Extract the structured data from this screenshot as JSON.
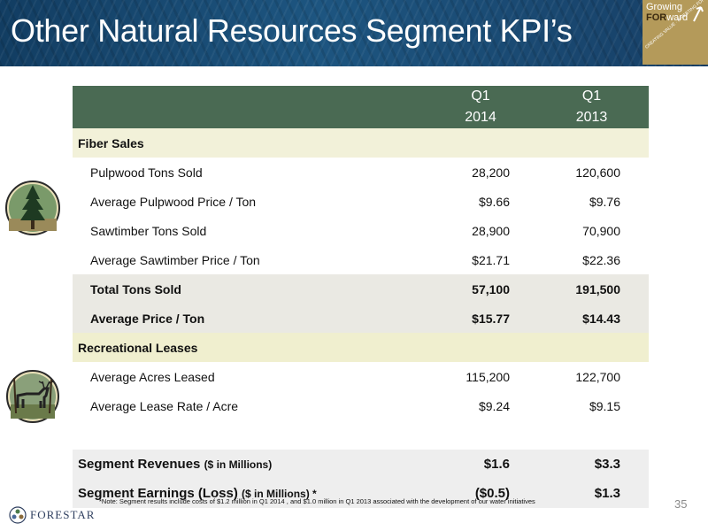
{
  "header": {
    "title": "Other Natural Resources Segment KPI’s",
    "badge_line1": "Growing",
    "badge_line2_bold": "FOR",
    "badge_line2_rest": "ward",
    "badge_slogan": "CREATING VALUE · INVESTING FOR THE FUTURE"
  },
  "table": {
    "col1_label": "Q1",
    "col1_year": "2014",
    "col2_label": "Q1",
    "col2_year": "2013",
    "fiber_section": "Fiber Sales",
    "fiber_rows": [
      {
        "label": "Pulpwood Tons Sold",
        "q1_2014": "28,200",
        "q1_2013": "120,600"
      },
      {
        "label": "Average Pulpwood Price / Ton",
        "q1_2014": "$9.66",
        "q1_2013": "$9.76"
      },
      {
        "label": "Sawtimber Tons Sold",
        "q1_2014": "28,900",
        "q1_2013": "70,900"
      },
      {
        "label": "Average Sawtimber Price / Ton",
        "q1_2014": "$21.71",
        "q1_2013": "$22.36"
      }
    ],
    "total_rows": [
      {
        "label": "Total Tons Sold",
        "q1_2014": "57,100",
        "q1_2013": "191,500"
      },
      {
        "label": "Average Price / Ton",
        "q1_2014": "$15.77",
        "q1_2013": "$14.43"
      }
    ],
    "rec_section": "Recreational Leases",
    "rec_rows": [
      {
        "label": "Average Acres Leased",
        "q1_2014": "115,200",
        "q1_2013": "122,700"
      },
      {
        "label": "Average Lease Rate / Acre",
        "q1_2014": "$9.24",
        "q1_2013": "$9.15"
      }
    ],
    "segment_revenues": {
      "label": "Segment Revenues",
      "unit": "($ in Millions)",
      "q1_2014": "$1.6",
      "q1_2013": "$3.3"
    },
    "segment_earnings": {
      "label": "Segment Earnings (Loss)",
      "unit": "($ in Millions) *",
      "q1_2014": "($0.5)",
      "q1_2013": "$1.3"
    }
  },
  "footnote": "*Note: Segment results include costs of $1.2 million in Q1 2014 , and $1.0 million in Q1 2013 associated with the development of our water initiatives",
  "page_number": "35",
  "logo_text": "FORESTAR",
  "icons": {
    "tree": "pine-tree-icon",
    "deer": "deer-icon",
    "logo": "forestar-logo-icon"
  },
  "colors": {
    "header_blue": "#1d5580",
    "table_header_green": "#4a6a53",
    "band_cream": "#f0efcf",
    "badge_gold": "#b49a5a"
  }
}
